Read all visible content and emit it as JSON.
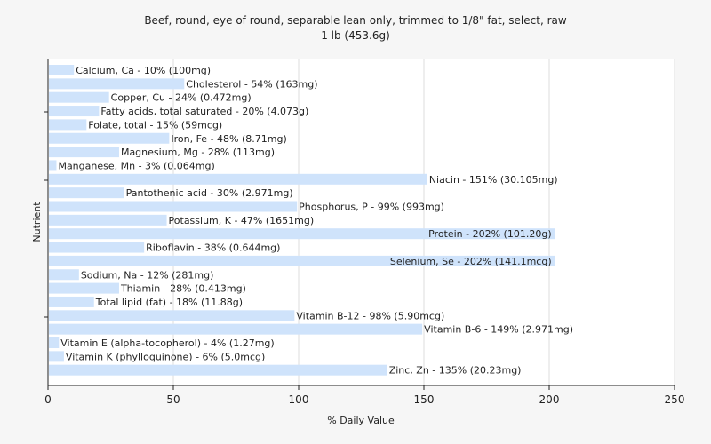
{
  "chart_data": {
    "type": "bar",
    "orientation": "horizontal",
    "title": "Beef, round, eye of round, separable lean only, trimmed to 1/8\" fat, select, raw",
    "subtitle": "1 lb (453.6g)",
    "xlabel": "% Daily Value",
    "ylabel": "Nutrient",
    "xlim": [
      0,
      250
    ],
    "xticks": [
      0,
      50,
      100,
      150,
      200,
      250
    ],
    "grid": true,
    "bar_color": "#cfe3fb",
    "categories": [
      "Calcium, Ca",
      "Cholesterol",
      "Copper, Cu",
      "Fatty acids, total saturated",
      "Folate, total",
      "Iron, Fe",
      "Magnesium, Mg",
      "Manganese, Mn",
      "Niacin",
      "Pantothenic acid",
      "Phosphorus, P",
      "Potassium, K",
      "Protein",
      "Riboflavin",
      "Selenium, Se",
      "Sodium, Na",
      "Thiamin",
      "Total lipid (fat)",
      "Vitamin B-12",
      "Vitamin B-6",
      "Vitamin E (alpha-tocopherol)",
      "Vitamin K (phylloquinone)",
      "Zinc, Zn"
    ],
    "values": [
      10,
      54,
      24,
      20,
      15,
      48,
      28,
      3,
      151,
      30,
      99,
      47,
      202,
      38,
      202,
      12,
      28,
      18,
      98,
      149,
      4,
      6,
      135
    ],
    "labels": [
      "Calcium, Ca - 10% (100mg)",
      "Cholesterol - 54% (163mg)",
      "Copper, Cu - 24% (0.472mg)",
      "Fatty acids, total saturated - 20% (4.073g)",
      "Folate, total - 15% (59mcg)",
      "Iron, Fe - 48% (8.71mg)",
      "Magnesium, Mg - 28% (113mg)",
      "Manganese, Mn - 3% (0.064mg)",
      "Niacin - 151% (30.105mg)",
      "Pantothenic acid - 30% (2.971mg)",
      "Phosphorus, P - 99% (993mg)",
      "Potassium, K - 47% (1651mg)",
      "Protein - 202% (101.20g)",
      "Riboflavin - 38% (0.644mg)",
      "Selenium, Se - 202% (141.1mcg)",
      "Sodium, Na - 12% (281mg)",
      "Thiamin - 28% (0.413mg)",
      "Total lipid (fat) - 18% (11.88g)",
      "Vitamin B-12 - 98% (5.90mcg)",
      "Vitamin B-6 - 149% (2.971mg)",
      "Vitamin E (alpha-tocopherol) - 4% (1.27mg)",
      "Vitamin K (phylloquinone) - 6% (5.0mcg)",
      "Zinc, Zn - 135% (20.23mg)"
    ]
  }
}
